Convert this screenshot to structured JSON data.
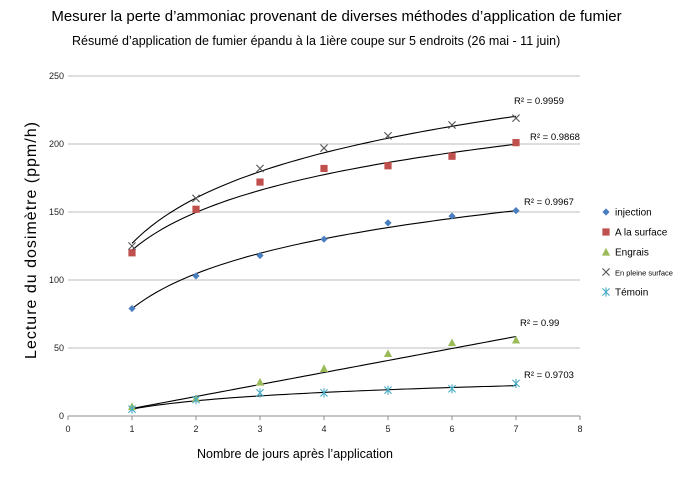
{
  "chart_data": {
    "type": "scatter",
    "title": "Mesurer la perte d’ammoniac provenant de diverses méthodes d’application de fumier",
    "subtitle": "Résumé d’application de fumier épandu à la 1ière coupe sur 5 endroits (26 mai - 11 juin)",
    "xlabel": "Nombre de jours après l’application",
    "ylabel": "Lecture du dosimètre (ppm/h)",
    "xlim": [
      0,
      8
    ],
    "ylim": [
      0,
      250
    ],
    "xticks": [
      "0",
      "1",
      "2",
      "3",
      "4",
      "5",
      "6",
      "7",
      "8"
    ],
    "yticks": [
      "0",
      "50",
      "100",
      "150",
      "200",
      "250"
    ],
    "x": [
      1,
      2,
      3,
      4,
      5,
      6,
      7
    ],
    "legend_position": "right",
    "grid": "horizontal",
    "series": [
      {
        "name": "injection",
        "marker": "diamond",
        "color": "#4a7ebf",
        "values": [
          79,
          103,
          118,
          130,
          142,
          147,
          151
        ]
      },
      {
        "name": "A la surface",
        "marker": "square",
        "color": "#c0504d",
        "values": [
          120,
          152,
          172,
          182,
          184,
          191,
          201
        ]
      },
      {
        "name": "Engrais",
        "marker": "triangle",
        "color": "#9bbb59",
        "values": [
          7,
          13,
          25,
          35,
          46,
          54,
          56
        ]
      },
      {
        "name": "En pleine surface",
        "marker": "x",
        "color": "#555555",
        "values": [
          125,
          160,
          182,
          197,
          206,
          214,
          219
        ]
      },
      {
        "name": "Témoin",
        "marker": "asterisk",
        "color": "#4bacc6",
        "values": [
          5,
          12,
          17,
          17,
          19,
          20,
          24
        ]
      }
    ],
    "trendlines": [
      {
        "series": "injection",
        "kind": "log",
        "a": 79,
        "b": 37,
        "r2": "R² = 0.9967"
      },
      {
        "series": "A la surface",
        "kind": "log",
        "a": 122,
        "b": 40,
        "r2": "R² = 0.9868"
      },
      {
        "series": "En pleine surface",
        "kind": "log",
        "a": 127,
        "b": 48,
        "r2": "R² = 0.9959"
      },
      {
        "series": "Engrais",
        "kind": "linear",
        "a": -3.33,
        "b": 8.83,
        "r2": "R² = 0.99"
      },
      {
        "series": "Témoin",
        "kind": "log",
        "a": 5,
        "b": 8.9,
        "r2": "R² = 0.9703"
      }
    ]
  }
}
